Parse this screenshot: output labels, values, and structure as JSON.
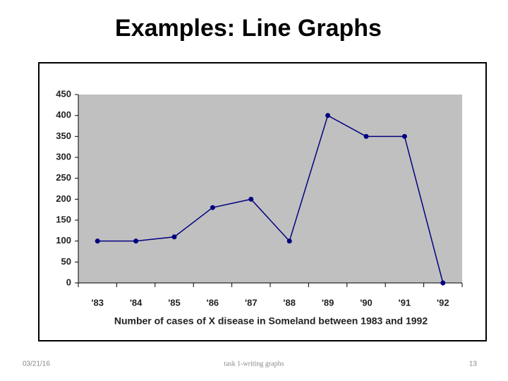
{
  "slide": {
    "title": "Examples: Line Graphs",
    "footer": {
      "date": "03/21/16",
      "center": "task 1-writing graphs",
      "page": "13"
    }
  },
  "chart_data": {
    "type": "line",
    "x_label": "Number of cases of X disease in Someland between 1983 and 1992",
    "categories": [
      "'83",
      "'84",
      "'85",
      "'86",
      "'87",
      "'88",
      "'89",
      "'90",
      "'91",
      "'92"
    ],
    "series": [
      {
        "color": "#000080",
        "values": [
          100,
          100,
          110,
          180,
          200,
          100,
          400,
          350,
          350,
          0
        ]
      }
    ],
    "ylim": [
      0,
      450
    ],
    "yticks": [
      0,
      50,
      100,
      150,
      200,
      250,
      300,
      350,
      400,
      450
    ],
    "grid": false,
    "plot_background": "#c0c0c0"
  }
}
